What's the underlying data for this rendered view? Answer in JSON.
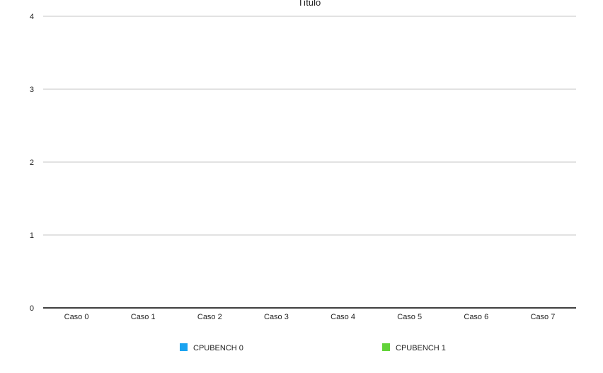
{
  "chart_data": {
    "type": "bar",
    "title": "Título",
    "xlabel": "",
    "ylabel": "",
    "categories": [
      "Caso 0",
      "Caso 1",
      "Caso 2",
      "Caso 3",
      "Caso 4",
      "Caso 5",
      "Caso 6",
      "Caso 7"
    ],
    "series": [
      {
        "name": "CPUBENCH 0",
        "color": "#1aa3f0",
        "values": [
          0,
          0,
          0,
          0,
          0,
          0,
          0,
          0
        ]
      },
      {
        "name": "CPUBENCH 1",
        "color": "#62d339",
        "values": [
          0,
          0,
          0,
          0,
          0,
          0,
          0,
          0
        ]
      }
    ],
    "ylim": [
      0,
      4
    ],
    "yticks": [
      "0",
      "1",
      "2",
      "3",
      "4"
    ],
    "grid": true,
    "legend_position": "bottom"
  }
}
